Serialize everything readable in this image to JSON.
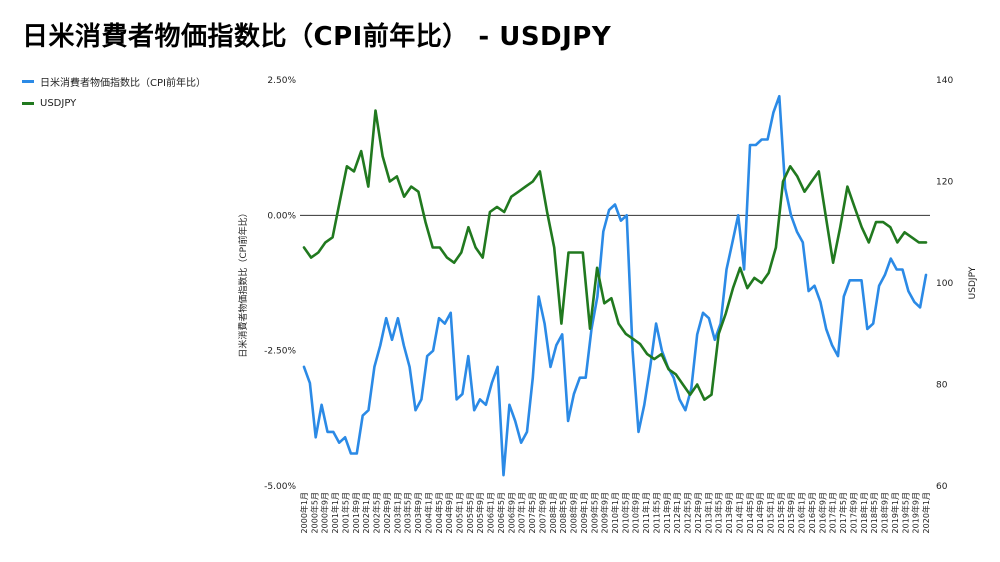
{
  "title": "日米消費者物価指数比（CPI前年比） - USDJPY",
  "colors": {
    "cpi": "#2b8ae6",
    "usdjpy": "#21791f",
    "zero": "#333333",
    "text": "#222222"
  },
  "chart_data": {
    "type": "line",
    "title": "日米消費者物価指数比（CPI前年比） - USDJPY",
    "ylabel_left": "日米消費者物価指数比（CPI前年比）",
    "ylabel_right": "USDJPY",
    "ylim_left": [
      -0.05,
      0.025
    ],
    "ylim_right": [
      60,
      140
    ],
    "yticks_left": [
      "2.50%",
      "0.00%",
      "-2.50%",
      "-5.00%"
    ],
    "yticks_left_values": [
      0.025,
      0,
      -0.025,
      -0.05
    ],
    "yticks_right": [
      "140",
      "120",
      "100",
      "80",
      "60"
    ],
    "yticks_right_values": [
      140,
      120,
      100,
      80,
      60
    ],
    "x_labels": [
      "2000年1月",
      "2000年5月",
      "2000年9月",
      "2001年1月",
      "2001年5月",
      "2001年9月",
      "2002年1月",
      "2002年5月",
      "2002年9月",
      "2003年1月",
      "2003年5月",
      "2003年9月",
      "2004年1月",
      "2004年5月",
      "2004年9月",
      "2005年1月",
      "2005年5月",
      "2005年9月",
      "2006年1月",
      "2006年5月",
      "2006年9月",
      "2007年1月",
      "2007年5月",
      "2007年9月",
      "2008年1月",
      "2008年5月",
      "2008年9月",
      "2009年1月",
      "2009年5月",
      "2009年9月",
      "2010年1月",
      "2010年5月",
      "2010年9月",
      "2011年1月",
      "2011年5月",
      "2011年9月",
      "2012年1月",
      "2012年5月",
      "2012年9月",
      "2013年1月",
      "2013年5月",
      "2013年9月",
      "2014年1月",
      "2014年5月",
      "2014年9月",
      "2015年1月",
      "2015年5月",
      "2015年9月",
      "2016年1月",
      "2016年5月",
      "2016年9月",
      "2017年1月",
      "2017年5月",
      "2017年9月",
      "2018年1月",
      "2018年5月",
      "2018年9月",
      "2019年1月",
      "2019年5月",
      "2019年9月",
      "2020年1月"
    ],
    "series": [
      {
        "name": "日米消費者物価指数比（CPI前年比）",
        "axis": "left",
        "values": [
          -0.028,
          -0.031,
          -0.041,
          -0.035,
          -0.04,
          -0.04,
          -0.042,
          -0.041,
          -0.044,
          -0.044,
          -0.037,
          -0.036,
          -0.028,
          -0.024,
          -0.019,
          -0.023,
          -0.019,
          -0.024,
          -0.028,
          -0.036,
          -0.034,
          -0.026,
          -0.025,
          -0.019,
          -0.02,
          -0.018,
          -0.034,
          -0.033,
          -0.026,
          -0.036,
          -0.034,
          -0.035,
          -0.031,
          -0.028,
          -0.048,
          -0.035,
          -0.038,
          -0.042,
          -0.04,
          -0.03,
          -0.015,
          -0.02,
          -0.028,
          -0.024,
          -0.022,
          -0.038,
          -0.033,
          -0.03,
          -0.03,
          -0.021,
          -0.015,
          -0.003,
          0.001,
          0.002,
          -0.001,
          0.0,
          -0.025,
          -0.04,
          -0.035,
          -0.028,
          -0.02,
          -0.025,
          -0.028,
          -0.03,
          -0.034,
          -0.036,
          -0.032,
          -0.022,
          -0.018,
          -0.019,
          -0.023,
          -0.02,
          -0.01,
          -0.005,
          0.0,
          -0.01,
          0.013,
          0.013,
          0.014,
          0.014,
          0.019,
          0.022,
          0.005,
          0.0,
          -0.003,
          -0.005,
          -0.014,
          -0.013,
          -0.016,
          -0.021,
          -0.024,
          -0.026,
          -0.015,
          -0.012,
          -0.012,
          -0.012,
          -0.021,
          -0.02,
          -0.013,
          -0.011,
          -0.008,
          -0.01,
          -0.01,
          -0.014,
          -0.016,
          -0.017,
          -0.011
        ]
      },
      {
        "name": "USDJPY",
        "axis": "right",
        "values": [
          107,
          105,
          106,
          108,
          109,
          116,
          123,
          122,
          126,
          119,
          134,
          125,
          120,
          121,
          117,
          119,
          118,
          112,
          107,
          107,
          105,
          104,
          106,
          111,
          107,
          105,
          114,
          115,
          114,
          117,
          118,
          119,
          120,
          122,
          114,
          107,
          92,
          106,
          106,
          106,
          91,
          103,
          96,
          97,
          92,
          90,
          89,
          88,
          86,
          85,
          86,
          83,
          82,
          80,
          78,
          80,
          77,
          78,
          90,
          94,
          99,
          103,
          99,
          101,
          100,
          102,
          107,
          120,
          123,
          121,
          118,
          120,
          122,
          113,
          104,
          111,
          119,
          115,
          111,
          108,
          112,
          112,
          111,
          108,
          110,
          109,
          108,
          108
        ],
        "values_note": "monthly approx"
      }
    ],
    "legend": [
      "日米消費者物価指数比（CPI前年比）",
      "USDJPY"
    ],
    "legend_position": "top-left",
    "zero_line": true
  }
}
